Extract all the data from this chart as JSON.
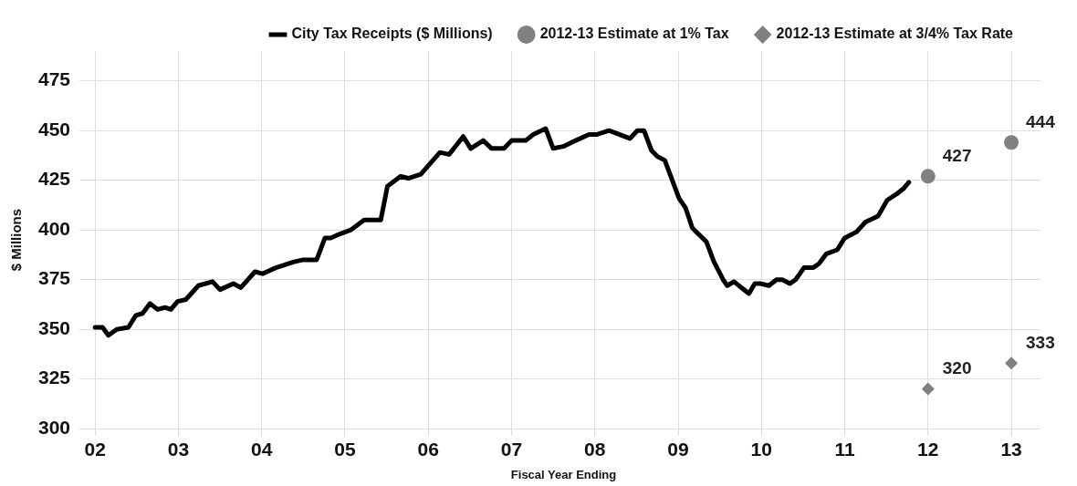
{
  "chart_data": {
    "type": "line",
    "xlabel": "Fiscal Year Ending",
    "ylabel": "$ Millions",
    "xlim": [
      1.9,
      13.35
    ],
    "xticks": [
      {
        "value": 2,
        "label": "02"
      },
      {
        "value": 3,
        "label": "03"
      },
      {
        "value": 4,
        "label": "04"
      },
      {
        "value": 5,
        "label": "05"
      },
      {
        "value": 6,
        "label": "06"
      },
      {
        "value": 7,
        "label": "07"
      },
      {
        "value": 8,
        "label": "08"
      },
      {
        "value": 9,
        "label": "09"
      },
      {
        "value": 10,
        "label": "10"
      },
      {
        "value": 11,
        "label": "11"
      },
      {
        "value": 12,
        "label": "12"
      },
      {
        "value": 13,
        "label": "13"
      }
    ],
    "ylim": [
      300,
      490
    ],
    "yticks": [
      300,
      325,
      350,
      375,
      400,
      425,
      450,
      475
    ],
    "grid": true,
    "legend": "top",
    "series": [
      {
        "name": "City Tax Receipts ($ Millions)",
        "type": "line",
        "color": "#000000",
        "marker": "none",
        "line_style": "solid",
        "x": [
          2.0,
          2.09,
          2.16,
          2.26,
          2.4,
          2.49,
          2.57,
          2.66,
          2.75,
          2.84,
          2.91,
          2.99,
          3.09,
          3.24,
          3.41,
          3.5,
          3.66,
          3.75,
          3.92,
          4.01,
          4.17,
          4.39,
          4.5,
          4.66,
          4.76,
          4.83,
          4.94,
          5.07,
          5.23,
          5.43,
          5.51,
          5.67,
          5.76,
          5.91,
          6.14,
          6.25,
          6.42,
          6.51,
          6.66,
          6.76,
          6.91,
          7.0,
          7.17,
          7.26,
          7.41,
          7.5,
          7.62,
          7.77,
          7.93,
          8.02,
          8.17,
          8.3,
          8.42,
          8.51,
          8.59,
          8.68,
          8.75,
          8.84,
          9.01,
          9.09,
          9.17,
          9.34,
          9.43,
          9.54,
          9.59,
          9.67,
          9.76,
          9.85,
          9.92,
          9.99,
          10.09,
          10.18,
          10.25,
          10.34,
          10.41,
          10.51,
          10.62,
          10.69,
          10.78,
          10.91,
          11.0,
          11.14,
          11.25,
          11.4,
          11.51,
          11.62,
          11.71,
          11.77
        ],
        "values": [
          351,
          351,
          347,
          350,
          351,
          357,
          358,
          363,
          360,
          361,
          360,
          364,
          365,
          372,
          374,
          370,
          373,
          371,
          379,
          378,
          381,
          384,
          385,
          385,
          396,
          396,
          398,
          400,
          405,
          405,
          422,
          427,
          426,
          428,
          439,
          438,
          447,
          441,
          445,
          441,
          441,
          445,
          445,
          448,
          451,
          441,
          442,
          445,
          448,
          448,
          450,
          448,
          446,
          450,
          450,
          440,
          437,
          435,
          416,
          411,
          401,
          394,
          384,
          375,
          372,
          374,
          371,
          368,
          373,
          373,
          372,
          375,
          375,
          373,
          375,
          381,
          381,
          383,
          388,
          390,
          396,
          399,
          404,
          407,
          415,
          418,
          421,
          424
        ]
      },
      {
        "name": "2012-13 Estimate at 1% Tax",
        "type": "scatter",
        "color": "#808080",
        "marker": "circle",
        "x": [
          12,
          13
        ],
        "values": [
          427,
          444
        ],
        "value_labels": [
          "427",
          "444"
        ]
      },
      {
        "name": "2012-13 Estimate at 3/4% Tax Rate",
        "type": "scatter",
        "color": "#7f7f7f",
        "marker": "diamond",
        "x": [
          12,
          13
        ],
        "values": [
          320,
          333
        ],
        "value_labels": [
          "320",
          "333"
        ]
      }
    ]
  }
}
